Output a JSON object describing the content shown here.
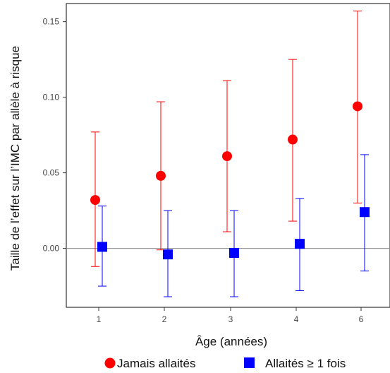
{
  "chart_data": {
    "type": "scatter",
    "title": "",
    "xlabel": "Âge (années)",
    "ylabel": "Taille de l’effet sur l’IMC par allèle à risque",
    "categories": [
      "1",
      "2",
      "3",
      "4",
      "6"
    ],
    "yticks": [
      "0.00",
      "0.05",
      "0.10",
      "0.15"
    ],
    "ylim": [
      -0.039,
      0.162
    ],
    "reference_line": 0,
    "grid": false,
    "legend_position": "bottom",
    "series": [
      {
        "name": "Jamais allaités",
        "marker": "circle",
        "color": "#ff0000",
        "values": [
          0.032,
          0.048,
          0.061,
          0.072,
          0.094
        ],
        "ci_low": [
          -0.012,
          -0.001,
          0.011,
          0.018,
          0.03
        ],
        "ci_high": [
          0.077,
          0.097,
          0.111,
          0.125,
          0.157
        ]
      },
      {
        "name": "Allaités ≥ 1 fois",
        "marker": "square",
        "color": "#0000ff",
        "values": [
          0.001,
          -0.004,
          -0.003,
          0.003,
          0.024
        ],
        "ci_low": [
          -0.025,
          -0.032,
          -0.032,
          -0.028,
          -0.015
        ],
        "ci_high": [
          0.028,
          0.025,
          0.025,
          0.033,
          0.062
        ]
      }
    ]
  }
}
